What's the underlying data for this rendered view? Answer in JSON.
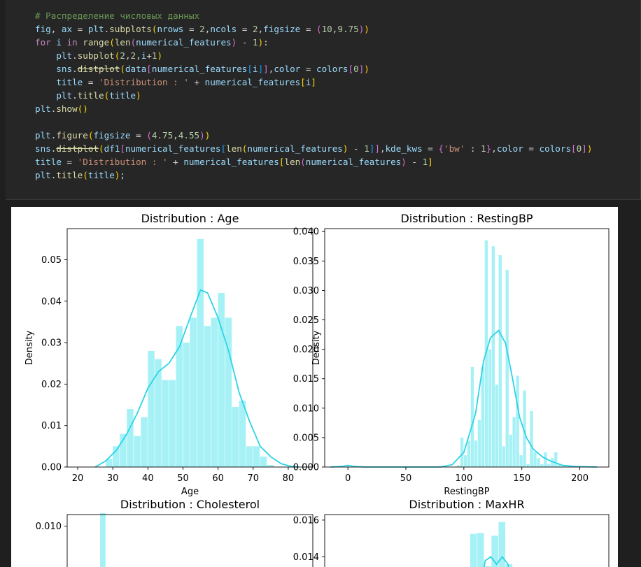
{
  "code": {
    "line1": "# Распределение числовых данных",
    "line2_pre": "fig, ax = plt.",
    "line2_fn": "subplots",
    "line2_args": "(nrows = 2,ncols = 2,figsize = (10,9.75))",
    "line3": "for i in range(len(numerical_features) - 1):",
    "line4": "    plt.subplot(2,2,i+1)",
    "line5": "    sns.distplot(data[numerical_features[i]],color = colors[0])",
    "line6": "    title = 'Distribution : ' + numerical_features[i]",
    "line7": "    plt.title(title)",
    "line8": "plt.show()",
    "line10": "plt.figure(figsize = (4.75,4.55))",
    "line11": "sns.distplot(df1[numerical_features[len(numerical_features) - 1]],kde_kws = {'bw' : 1},color = colors[0])",
    "line12": "title = 'Distribution : ' + numerical_features[len(numerical_features) - 1]",
    "line13": "plt.title(title);"
  },
  "colors": {
    "hist": "#a6f1f6",
    "kde": "#2bd4e6"
  },
  "chart_data": [
    {
      "type": "bar",
      "title": "Distribution : Age",
      "xlabel": "Age",
      "ylabel": "Density",
      "xlim": [
        17,
        87
      ],
      "ylim": [
        0,
        0.0575
      ],
      "xticks": [
        20,
        30,
        40,
        50,
        60,
        70,
        80
      ],
      "yticks": [
        "0.00",
        "0.01",
        "0.02",
        "0.03",
        "0.04",
        "0.05"
      ],
      "yticks_values": [
        0,
        0.01,
        0.02,
        0.03,
        0.04,
        0.05
      ],
      "bins": [
        [
          28,
          30,
          0.002
        ],
        [
          30,
          32,
          0.005
        ],
        [
          32,
          34,
          0.008
        ],
        [
          34,
          36,
          0.014
        ],
        [
          36,
          38,
          0.0075
        ],
        [
          38,
          40,
          0.012
        ],
        [
          40,
          42,
          0.028
        ],
        [
          42,
          44,
          0.026
        ],
        [
          44,
          46,
          0.021
        ],
        [
          46,
          48,
          0.021
        ],
        [
          48,
          50,
          0.034
        ],
        [
          50,
          52,
          0.03
        ],
        [
          52,
          54,
          0.036
        ],
        [
          54,
          56,
          0.055
        ],
        [
          56,
          58,
          0.034
        ],
        [
          58,
          60,
          0.036
        ],
        [
          60,
          62,
          0.042
        ],
        [
          62,
          64,
          0.036
        ],
        [
          64,
          66,
          0.0145
        ],
        [
          66,
          68,
          0.016
        ],
        [
          68,
          70,
          0.005
        ],
        [
          70,
          72,
          0.005
        ],
        [
          72,
          74,
          0.0025
        ],
        [
          74,
          76,
          0.0005
        ]
      ],
      "kde": [
        [
          25,
          0
        ],
        [
          28,
          0.0015
        ],
        [
          31,
          0.004
        ],
        [
          34,
          0.008
        ],
        [
          37,
          0.013
        ],
        [
          40,
          0.019
        ],
        [
          43,
          0.023
        ],
        [
          46,
          0.025
        ],
        [
          49,
          0.029
        ],
        [
          52,
          0.036
        ],
        [
          55,
          0.0427
        ],
        [
          57,
          0.042
        ],
        [
          60,
          0.036
        ],
        [
          63,
          0.028
        ],
        [
          66,
          0.018
        ],
        [
          69,
          0.011
        ],
        [
          72,
          0.005
        ],
        [
          75,
          0.0025
        ],
        [
          78,
          0.0008
        ],
        [
          81,
          0.0001
        ],
        [
          83,
          0
        ]
      ]
    },
    {
      "type": "bar",
      "title": "Distribution : RestingBP",
      "xlabel": "RestingBP",
      "ylabel": "Density",
      "xlim": [
        -20,
        225
      ],
      "ylim": [
        0,
        0.0405
      ],
      "xticks": [
        0,
        50,
        100,
        150,
        200
      ],
      "yticks": [
        "0.000",
        "0.005",
        "0.010",
        "0.015",
        "0.020",
        "0.025",
        "0.030",
        "0.035",
        "0.040"
      ],
      "yticks_values": [
        0,
        0.005,
        0.01,
        0.015,
        0.02,
        0.025,
        0.03,
        0.035,
        0.04
      ],
      "bins": [
        [
          -1,
          1,
          0.0003
        ],
        [
          94,
          97,
          0.0003
        ],
        [
          97,
          100,
          0.005
        ],
        [
          100,
          103,
          0.002
        ],
        [
          103,
          106,
          0.0045
        ],
        [
          106,
          109,
          0.017
        ],
        [
          109,
          112,
          0.0045
        ],
        [
          112,
          115,
          0.008
        ],
        [
          115,
          118,
          0.017
        ],
        [
          118,
          121,
          0.0385
        ],
        [
          121,
          124,
          0.02
        ],
        [
          124,
          127,
          0.0375
        ],
        [
          127,
          130,
          0.014
        ],
        [
          130,
          133,
          0.036
        ],
        [
          133,
          136,
          0.0035
        ],
        [
          136,
          139,
          0.0335
        ],
        [
          139,
          142,
          0.0055
        ],
        [
          142,
          145,
          0.0085
        ],
        [
          145,
          148,
          0.0155
        ],
        [
          148,
          151,
          0.002
        ],
        [
          151,
          154,
          0.013
        ],
        [
          154,
          157,
          0.0005
        ],
        [
          157,
          160,
          0.0095
        ],
        [
          160,
          163,
          0.0025
        ],
        [
          163,
          166,
          0.0015
        ],
        [
          166,
          169,
          0.0005
        ],
        [
          169,
          172,
          0.0025
        ],
        [
          172,
          175,
          0.0005
        ],
        [
          175,
          178,
          0.0015
        ],
        [
          178,
          181,
          0.0025
        ],
        [
          181,
          184,
          0.0005
        ],
        [
          185,
          188,
          0.0003
        ]
      ],
      "kde": [
        [
          -15,
          0
        ],
        [
          -5,
          0.0001
        ],
        [
          0,
          0.0003
        ],
        [
          5,
          0.0001
        ],
        [
          15,
          0
        ],
        [
          80,
          0
        ],
        [
          90,
          0.0004
        ],
        [
          100,
          0.0025
        ],
        [
          110,
          0.009
        ],
        [
          117,
          0.018
        ],
        [
          123,
          0.022
        ],
        [
          130,
          0.0232
        ],
        [
          136,
          0.021
        ],
        [
          142,
          0.015
        ],
        [
          148,
          0.0085
        ],
        [
          154,
          0.005
        ],
        [
          160,
          0.003
        ],
        [
          168,
          0.0017
        ],
        [
          175,
          0.001
        ],
        [
          185,
          0.0003
        ],
        [
          195,
          0.0001
        ],
        [
          215,
          0
        ]
      ]
    },
    {
      "type": "bar",
      "title": "Distribution : Cholesterol",
      "xlabel": "",
      "ylabel": "",
      "xlim": [
        0,
        1
      ],
      "ylim": [
        0.0075,
        0.0105
      ],
      "xticks": [],
      "yticks": [
        "0.010"
      ],
      "yticks_values": [
        0.01
      ],
      "bins": [
        [
          0.134,
          0.158,
          0.0108
        ]
      ],
      "kde": []
    },
    {
      "type": "bar",
      "title": "Distribution : MaxHR",
      "xlabel": "",
      "ylabel": "",
      "xlim": [
        0,
        1
      ],
      "ylim": [
        0.0125,
        0.0163
      ],
      "xticks": [],
      "yticks": [
        "0.014",
        "0.016"
      ],
      "yticks_values": [
        0.014,
        0.016
      ],
      "bins": [
        [
          0.512,
          0.537,
          0.01525
        ],
        [
          0.537,
          0.562,
          0.0153
        ],
        [
          0.562,
          0.587,
          0.0135
        ],
        [
          0.587,
          0.612,
          0.01515
        ],
        [
          0.612,
          0.637,
          0.0159
        ],
        [
          0.637,
          0.662,
          0.0136
        ]
      ],
      "kde": [
        [
          0.55,
          0.0125
        ],
        [
          0.565,
          0.0138
        ],
        [
          0.585,
          0.014
        ],
        [
          0.605,
          0.0136
        ],
        [
          0.625,
          0.014
        ],
        [
          0.645,
          0.0136
        ],
        [
          0.66,
          0.0125
        ]
      ]
    }
  ]
}
